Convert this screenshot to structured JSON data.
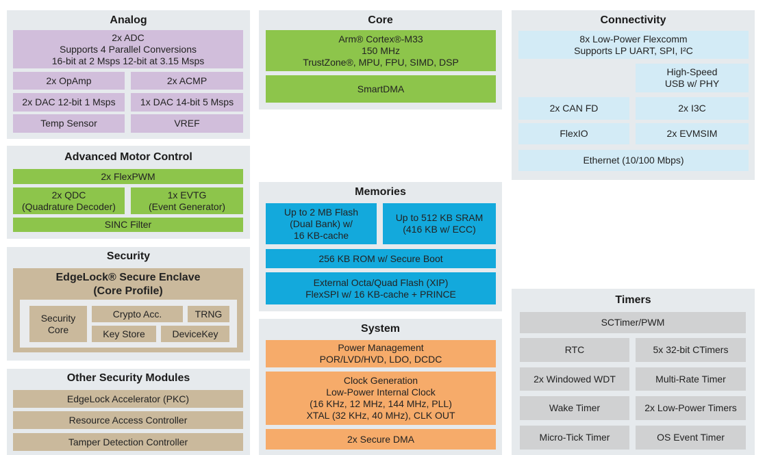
{
  "colors": {
    "panel": "#e6eaed",
    "analog": "#d1bedb",
    "motor_core": "#8dc54b",
    "security": "#cab99c",
    "memory": "#13a9dc",
    "connectivity": "#d3ebf6",
    "system": "#f6ab6a",
    "timers": "#d0d1d2"
  },
  "analog": {
    "title": "Analog",
    "adc": "2x ADC\nSupports 4 Parallel Conversions\n16-bit at 2 Msps 12-bit at 3.15 Msps",
    "opamp": "2x OpAmp",
    "acmp": "2x ACMP",
    "dac12": "2x DAC 12-bit 1 Msps",
    "dac14": "1x DAC 14-bit 5 Msps",
    "temp": "Temp Sensor",
    "vref": "VREF"
  },
  "motor": {
    "title": "Advanced Motor Control",
    "flexpwm": "2x FlexPWM",
    "qdc": "2x QDC\n(Quadrature Decoder)",
    "evtg": "1x EVTG\n(Event Generator)",
    "sinc": "SINC Filter"
  },
  "security": {
    "title": "Security",
    "enclave": "EdgeLock® Secure Enclave\n(Core Profile)",
    "security_core": "Security\nCore",
    "crypto": "Crypto Acc.",
    "trng": "TRNG",
    "key_store": "Key Store",
    "device_key": "DeviceKey"
  },
  "other_security": {
    "title": "Other Security Modules",
    "pkc": "EdgeLock Accelerator (PKC)",
    "rac": "Resource Access Controller",
    "tamper": "Tamper Detection Controller"
  },
  "core": {
    "title": "Core",
    "cpu": "Arm® Cortex®-M33\n150 MHz\nTrustZone®, MPU, FPU, SIMD, DSP",
    "smartdma": "SmartDMA"
  },
  "memories": {
    "title": "Memories",
    "flash": "Up to 2 MB Flash\n(Dual Bank) w/\n16 KB-cache",
    "sram": "Up to 512 KB SRAM\n(416 KB w/ ECC)",
    "rom": "256 KB ROM w/ Secure Boot",
    "ext_flash": "External Octa/Quad Flash (XIP)\nFlexSPI w/ 16 KB-cache + PRINCE"
  },
  "system": {
    "title": "System",
    "power": "Power Management\nPOR/LVD/HVD, LDO, DCDC",
    "clock": "Clock Generation\nLow-Power Internal Clock\n(16 KHz, 12 MHz, 144 MHz, PLL)\nXTAL (32 KHz, 40 MHz), CLK OUT",
    "secure_dma": "2x Secure DMA"
  },
  "connectivity": {
    "title": "Connectivity",
    "flexcomm": "8x Low-Power Flexcomm\nSupports LP UART, SPI, I²C",
    "usb": "High-Speed\nUSB w/ PHY",
    "can": "2x CAN FD",
    "i3c": "2x I3C",
    "flexio": "FlexIO",
    "evmsim": "2x EVMSIM",
    "ethernet": "Ethernet (10/100 Mbps)"
  },
  "timers": {
    "title": "Timers",
    "sctimer": "SCTimer/PWM",
    "rtc": "RTC",
    "ctimers": "5x 32-bit CTimers",
    "wwdt": "2x Windowed WDT",
    "mrt": "Multi-Rate Timer",
    "wake": "Wake Timer",
    "lp_timers": "2x Low-Power Timers",
    "utick": "Micro-Tick Timer",
    "os_timer": "OS Event Timer"
  }
}
